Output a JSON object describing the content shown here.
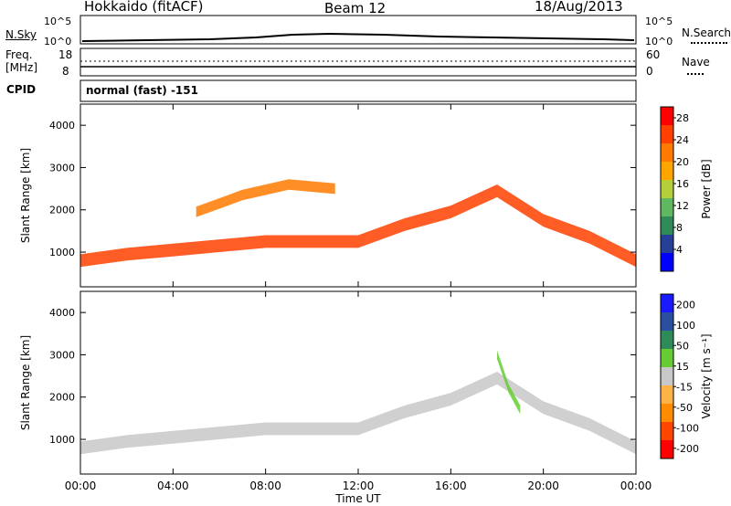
{
  "header": {
    "station": "Hokkaido (fitACF)",
    "beam": "Beam 12",
    "date": "18/Aug/2013"
  },
  "strip_panels": {
    "nsky_label": "N.Sky",
    "nsky_ticks": [
      "10^5",
      "10^0"
    ],
    "nsearch_label": "N.Search",
    "nsearch_ticks": [
      "10^5",
      "10^0"
    ],
    "freq_label_line1": "Freq.",
    "freq_label_line2": "[MHz]",
    "freq_ticks": [
      "18",
      "8"
    ],
    "nave_label": "Nave",
    "nave_ticks": [
      "60",
      "0"
    ],
    "cpid_label": "CPID",
    "cpid_value": "normal (fast) -151"
  },
  "colors": {
    "power_scale": [
      "#0000ff",
      "#26409a",
      "#2e8b57",
      "#5fb85f",
      "#b5cf3a",
      "#ffa500",
      "#ff7a00",
      "#ff4000",
      "#ff0000"
    ],
    "velocity_scale": [
      "#ff0000",
      "#ff4500",
      "#ff8c00",
      "#ffb347",
      "#c8c8c8",
      "#66cc33",
      "#2e8b57",
      "#2a4fa0",
      "#1a1aff"
    ],
    "ground_scatter": "#c8c8c8"
  },
  "chart_data": [
    {
      "type": "heatmap",
      "title": "",
      "xlabel": "Time UT",
      "ylabel": "Slant Range [km]",
      "x_ticks": [
        "00:00",
        "04:00",
        "08:00",
        "12:00",
        "16:00",
        "20:00",
        "00:00"
      ],
      "y_ticks": [
        "1000",
        "2000",
        "3000",
        "4000"
      ],
      "y_tick_values": [
        1000,
        2000,
        3000,
        4000
      ],
      "ylim": [
        180,
        4500
      ],
      "xlim_hours": [
        0,
        24
      ],
      "colorbar_label": "Power [dB]",
      "colorbar_ticks": [
        "4",
        "8",
        "12",
        "16",
        "20",
        "24",
        "28"
      ],
      "colorbar_range": [
        0,
        30
      ],
      "echo_bands": [
        {
          "x": [
            0,
            2,
            4,
            6,
            8,
            10,
            12,
            14,
            16,
            18,
            20,
            22,
            24
          ],
          "y": [
            800,
            950,
            1050,
            1150,
            1250,
            1250,
            1250,
            1650,
            1950,
            2450,
            1750,
            1350,
            800
          ],
          "width_km": 300,
          "value_db": 26
        },
        {
          "x": [
            5,
            7,
            9,
            11
          ],
          "y": [
            1950,
            2350,
            2600,
            2500
          ],
          "width_km": 250,
          "value_db": 22
        }
      ]
    },
    {
      "type": "heatmap",
      "title": "",
      "xlabel": "Time UT",
      "ylabel": "Slant Range [km]",
      "x_ticks": [
        "00:00",
        "04:00",
        "08:00",
        "12:00",
        "16:00",
        "20:00",
        "00:00"
      ],
      "y_ticks": [
        "1000",
        "2000",
        "3000",
        "4000"
      ],
      "y_tick_values": [
        1000,
        2000,
        3000,
        4000
      ],
      "ylim": [
        180,
        4500
      ],
      "xlim_hours": [
        0,
        24
      ],
      "colorbar_label": "Velocity [m s⁻¹]",
      "colorbar_ticks": [
        "200",
        "100",
        "50",
        "15",
        "-15",
        "-50",
        "-100",
        "-200"
      ],
      "colorbar_range": [
        -250,
        250
      ],
      "echo_bands": [
        {
          "x": [
            0,
            2,
            4,
            6,
            8,
            10,
            12,
            14,
            16,
            18,
            20,
            22,
            24
          ],
          "y": [
            800,
            950,
            1050,
            1150,
            1250,
            1250,
            1250,
            1650,
            1950,
            2450,
            1750,
            1350,
            800
          ],
          "width_km": 300,
          "value_ms": 0
        },
        {
          "x": [
            18,
            18.5,
            19
          ],
          "y": [
            3000,
            2200,
            1700
          ],
          "width_km": 200,
          "value_ms": 40
        }
      ]
    }
  ]
}
